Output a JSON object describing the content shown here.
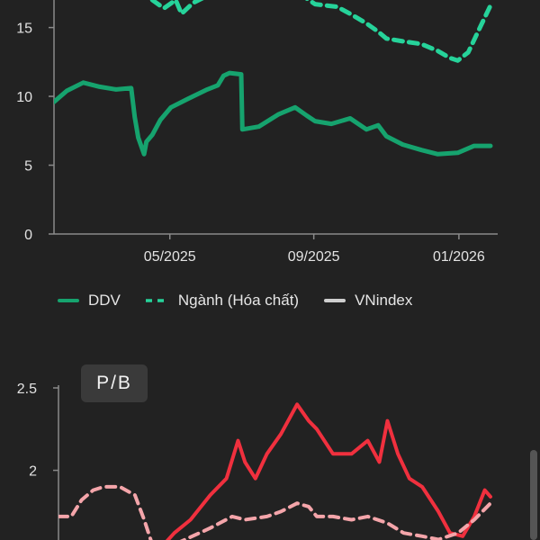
{
  "legend": {
    "ddv": "DDV",
    "industry": "Ngành (Hóa chất)",
    "vnindex": "VNindex"
  },
  "pb_chart": {
    "badge": "P/B"
  },
  "colors": {
    "background": "#222222",
    "axis_text": "#e3e3e3",
    "ddv_green": "#16a36e",
    "industry_green": "#26d39a",
    "vnindex_gray": "#cfcfcf",
    "pb_red": "#f0303e",
    "pb_pink": "#f4a5aa",
    "badge_bg": "#3a3a3a"
  },
  "chart_data": [
    {
      "type": "line",
      "title": "",
      "xlabel": "",
      "ylabel": "",
      "ylim": [
        0,
        17
      ],
      "grid": false,
      "legend_position": "bottom",
      "x_tick_labels": [
        "05/2025",
        "09/2025",
        "01/2026"
      ],
      "y_ticks": [
        0,
        5,
        10,
        15
      ],
      "x_range": [
        "2025-01-21",
        "2026-01-29"
      ],
      "x_tick_dates": [
        "2025-04-30",
        "2025-08-31",
        "2026-01-02"
      ],
      "series": [
        {
          "name": "DDV",
          "style": "solid",
          "color": "#16a36e",
          "x": [
            "2025-01-21",
            "2025-02-01",
            "2025-02-15",
            "2025-03-01",
            "2025-03-15",
            "2025-03-28",
            "2025-03-31",
            "2025-04-03",
            "2025-04-08",
            "2025-04-10",
            "2025-04-15",
            "2025-04-22",
            "2025-05-01",
            "2025-05-15",
            "2025-06-01",
            "2025-06-10",
            "2025-06-15",
            "2025-06-20",
            "2025-06-30",
            "2025-07-01",
            "2025-07-15",
            "2025-08-01",
            "2025-08-15",
            "2025-08-25",
            "2025-09-01",
            "2025-09-15",
            "2025-10-01",
            "2025-10-15",
            "2025-10-25",
            "2025-11-01",
            "2025-11-15",
            "2025-12-01",
            "2025-12-15",
            "2026-01-01",
            "2026-01-15",
            "2026-01-29"
          ],
          "values": [
            9.6,
            10.4,
            11.0,
            10.7,
            10.5,
            10.6,
            8.5,
            7.0,
            5.8,
            6.7,
            7.2,
            8.3,
            9.2,
            9.8,
            10.5,
            10.8,
            11.5,
            11.7,
            11.6,
            7.6,
            7.8,
            8.7,
            9.2,
            8.6,
            8.2,
            8.0,
            8.4,
            7.6,
            7.9,
            7.1,
            6.5,
            6.1,
            5.8,
            5.9,
            6.4,
            6.4
          ]
        },
        {
          "name": "Ngành (Hóa chất)",
          "style": "dashed",
          "color": "#26d39a",
          "x": [
            "2025-04-15",
            "2025-04-25",
            "2025-05-05",
            "2025-05-10",
            "2025-05-20",
            "2025-06-01",
            "2025-07-01",
            "2025-08-01",
            "2025-08-20",
            "2025-09-01",
            "2025-09-20",
            "2025-10-01",
            "2025-10-15",
            "2025-10-25",
            "2025-11-01",
            "2025-11-15",
            "2025-12-01",
            "2025-12-15",
            "2025-12-25",
            "2026-01-01",
            "2026-01-10",
            "2026-01-20",
            "2026-01-29"
          ],
          "values": [
            17.0,
            16.4,
            17.0,
            16.0,
            16.8,
            17.3,
            17.6,
            17.2,
            17.4,
            16.7,
            16.5,
            16.0,
            15.3,
            14.7,
            14.2,
            14.0,
            13.8,
            13.3,
            12.8,
            12.6,
            13.2,
            15.0,
            16.6
          ]
        },
        {
          "name": "VNindex",
          "style": "solid",
          "color": "#cfcfcf",
          "x": [],
          "values": []
        }
      ]
    },
    {
      "type": "line",
      "title": "P/B",
      "xlabel": "",
      "ylabel": "",
      "ylim": [
        1.55,
        2.5
      ],
      "grid": false,
      "y_ticks": [
        2,
        2.5
      ],
      "y_tick_labels": [
        "2",
        "2.5"
      ],
      "x_range": [
        "2025-01-21",
        "2026-01-29"
      ],
      "series": [
        {
          "style": "solid",
          "color": "#f0303e",
          "x": [
            "2025-04-22",
            "2025-05-01",
            "2025-05-15",
            "2025-06-01",
            "2025-06-15",
            "2025-06-25",
            "2025-07-01",
            "2025-07-10",
            "2025-07-20",
            "2025-08-01",
            "2025-08-15",
            "2025-08-25",
            "2025-09-01",
            "2025-09-15",
            "2025-10-01",
            "2025-10-15",
            "2025-10-25",
            "2025-11-01",
            "2025-11-10",
            "2025-11-20",
            "2025-12-01",
            "2025-12-15",
            "2025-12-25",
            "2026-01-05",
            "2026-01-15",
            "2026-01-24",
            "2026-01-29"
          ],
          "values": [
            1.55,
            1.62,
            1.7,
            1.85,
            1.95,
            2.18,
            2.05,
            1.95,
            2.1,
            2.22,
            2.4,
            2.3,
            2.25,
            2.1,
            2.1,
            2.18,
            2.05,
            2.3,
            2.1,
            1.95,
            1.9,
            1.75,
            1.62,
            1.6,
            1.72,
            1.88,
            1.84
          ]
        },
        {
          "style": "dashed",
          "color": "#f4a5aa",
          "x": [
            "2025-01-21",
            "2025-02-01",
            "2025-02-10",
            "2025-02-20",
            "2025-03-01",
            "2025-03-15",
            "2025-03-28",
            "2025-04-05",
            "2025-04-12",
            "2025-05-01",
            "2025-06-01",
            "2025-06-20",
            "2025-07-01",
            "2025-07-20",
            "2025-08-01",
            "2025-08-15",
            "2025-08-25",
            "2025-09-01",
            "2025-09-15",
            "2025-10-01",
            "2025-10-15",
            "2025-11-01",
            "2025-11-15",
            "2025-12-01",
            "2025-12-15",
            "2026-01-01",
            "2026-01-15",
            "2026-01-29"
          ],
          "values": [
            1.72,
            1.72,
            1.82,
            1.88,
            1.9,
            1.9,
            1.85,
            1.7,
            1.55,
            1.55,
            1.65,
            1.72,
            1.7,
            1.72,
            1.75,
            1.8,
            1.78,
            1.72,
            1.72,
            1.7,
            1.72,
            1.68,
            1.62,
            1.6,
            1.58,
            1.62,
            1.7,
            1.8
          ]
        }
      ]
    }
  ]
}
